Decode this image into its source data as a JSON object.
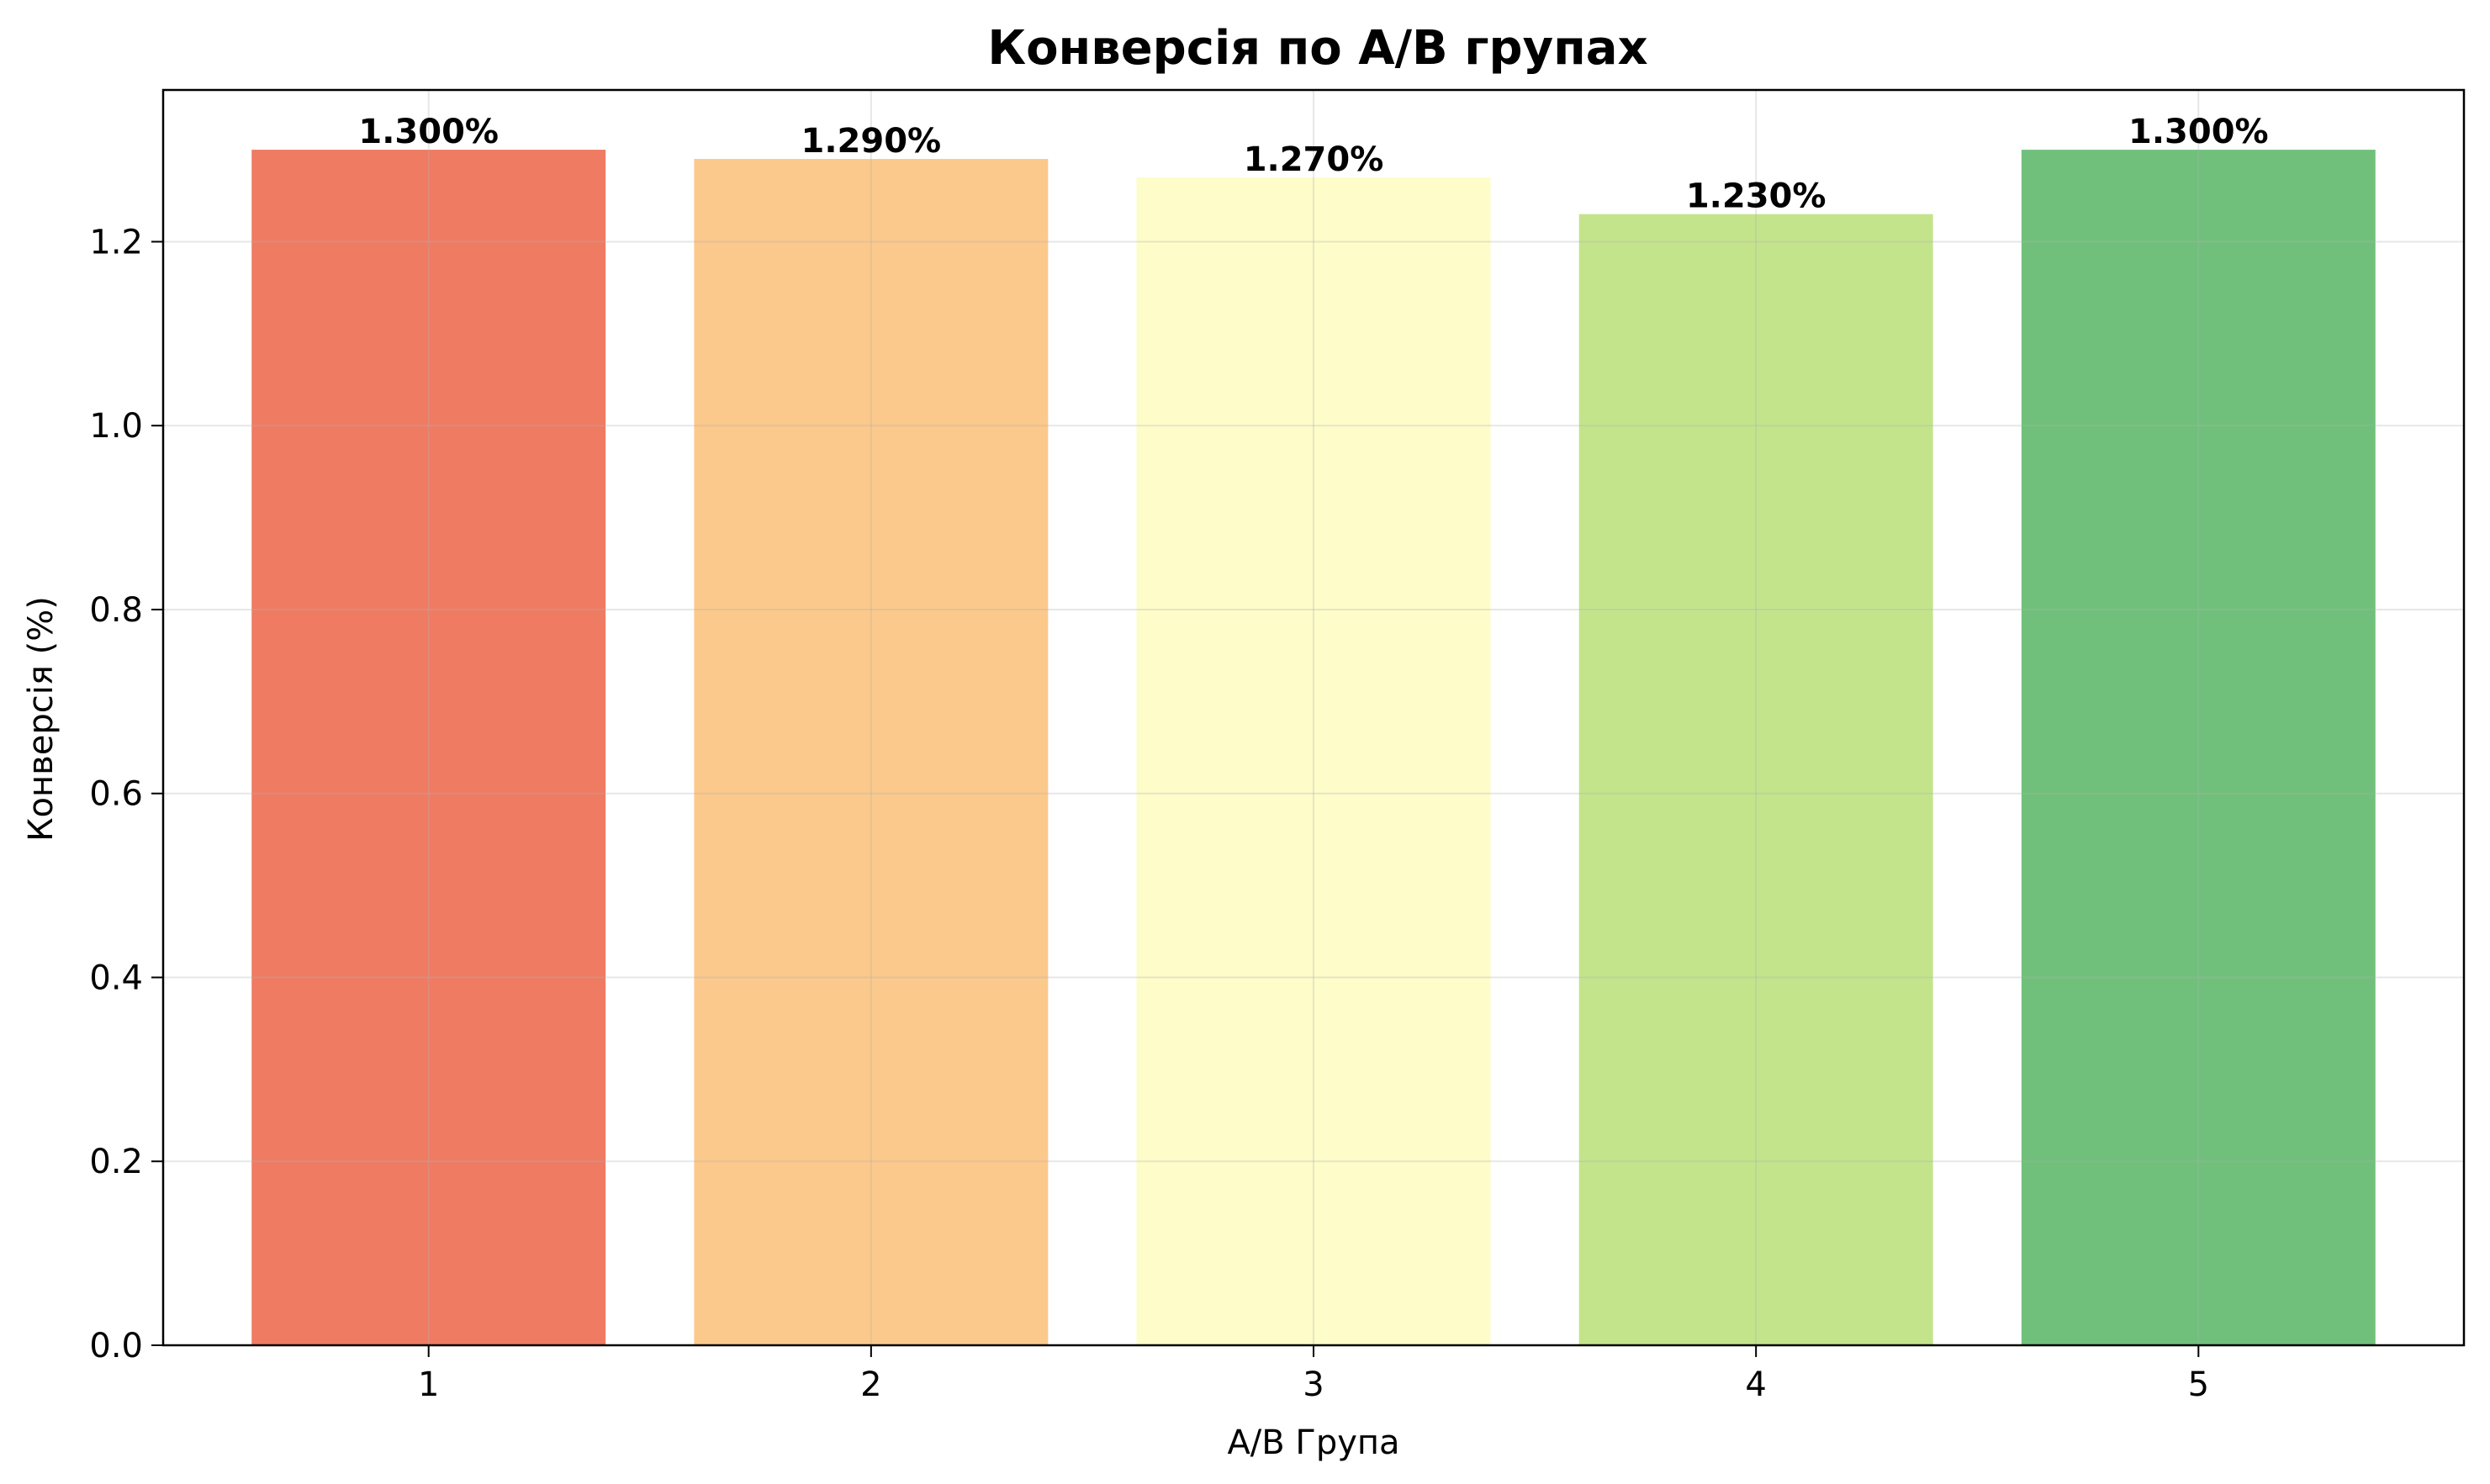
{
  "chart_data": {
    "type": "bar",
    "title": "Конверсія по A/B групах",
    "xlabel": "A/B Група",
    "ylabel": "Конверсія (%)",
    "categories": [
      "1",
      "2",
      "3",
      "4",
      "5"
    ],
    "values": [
      1.3,
      1.29,
      1.27,
      1.23,
      1.3
    ],
    "data_labels": [
      "1.300%",
      "1.290%",
      "1.270%",
      "1.230%",
      "1.300%"
    ],
    "colors": [
      "#ef7b63",
      "#fcc98c",
      "#fefdca",
      "#c4e48c",
      "#70c07b"
    ],
    "ylim": [
      0,
      1.365
    ],
    "yticks": [
      0.0,
      0.2,
      0.4,
      0.6,
      0.8,
      1.0,
      1.2
    ],
    "ytick_labels": [
      "0.0",
      "0.2",
      "0.4",
      "0.6",
      "0.8",
      "1.0",
      "1.2"
    ],
    "grid": true,
    "legend": "none"
  }
}
